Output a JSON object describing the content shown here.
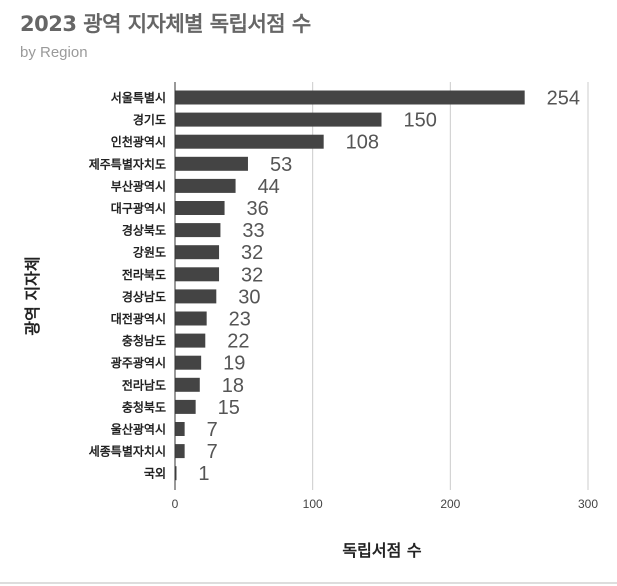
{
  "title": "2023 광역 지자체별 독립서점 수",
  "subtitle": "by Region",
  "chart_data": {
    "type": "bar",
    "orientation": "horizontal",
    "categories": [
      "서울특별시",
      "경기도",
      "인천광역시",
      "제주특별자치도",
      "부산광역시",
      "대구광역시",
      "경상북도",
      "강원도",
      "전라북도",
      "경상남도",
      "대전광역시",
      "충청남도",
      "광주광역시",
      "전라남도",
      "충청북도",
      "울산광역시",
      "세종특별자치시",
      "국외"
    ],
    "values": [
      254,
      150,
      108,
      53,
      44,
      36,
      33,
      32,
      32,
      30,
      23,
      22,
      19,
      18,
      15,
      7,
      7,
      1
    ],
    "xlabel": "독립서점 수",
    "ylabel": "광역 지자체",
    "xlim": [
      0,
      300
    ],
    "xticks": [
      0,
      100,
      200,
      300
    ],
    "grid": true,
    "legend": "none",
    "bar_color": "#444444",
    "grid_color": "#cccccc"
  }
}
